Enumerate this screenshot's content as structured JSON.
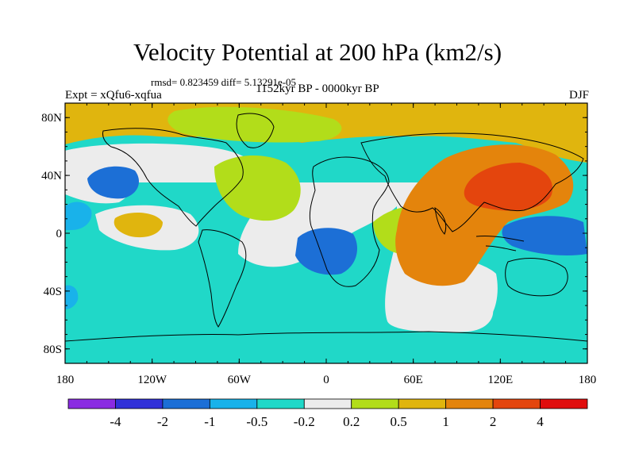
{
  "title": "Velocity Potential at 200 hPa (km2/s)",
  "stats": "rmsd= 0.823459 diff= 5.13291e-05",
  "experiment": "Expt = xQfu6-xqfua",
  "period": "1152kyr BP - 0000kyr BP",
  "season": "DJF",
  "map": {
    "lon_range": [
      -180,
      180
    ],
    "lat_range": [
      -90,
      90
    ],
    "lat_ticks": [
      {
        "value": 80,
        "label": "80N"
      },
      {
        "value": 40,
        "label": "40N"
      },
      {
        "value": 0,
        "label": "0"
      },
      {
        "value": -40,
        "label": "40S"
      },
      {
        "value": -80,
        "label": "80S"
      }
    ],
    "lon_ticks": [
      {
        "value": -180,
        "label": "180"
      },
      {
        "value": -120,
        "label": "120W"
      },
      {
        "value": -60,
        "label": "60W"
      },
      {
        "value": 0,
        "label": "0"
      },
      {
        "value": 60,
        "label": "60E"
      },
      {
        "value": 120,
        "label": "120E"
      },
      {
        "value": 180,
        "label": "180"
      }
    ]
  },
  "colorbar": {
    "colors": [
      "#8a2be2",
      "#3131d8",
      "#1c6fd6",
      "#19b2ea",
      "#20d8c8",
      "#ececec",
      "#b2dd1a",
      "#e0b50e",
      "#e4840c",
      "#e4450d",
      "#e00d0d"
    ],
    "labels": [
      "-4",
      "-2",
      "-1",
      "-0.5",
      "-0.2",
      "0.2",
      "0.5",
      "1",
      "2",
      "4"
    ]
  },
  "chart_data": {
    "type": "heatmap",
    "title": "Velocity Potential at 200 hPa (km2/s)",
    "subtitle": "1152kyr BP - 0000kyr BP",
    "season": "DJF",
    "units": "km2/s",
    "x_range": [
      -180,
      180
    ],
    "y_range": [
      -90,
      90
    ],
    "levels": [
      -4,
      -2,
      -1,
      -0.5,
      -0.2,
      0.2,
      0.5,
      1,
      2,
      4
    ],
    "background_class": "-0.5 to -0.2",
    "regions": [
      {
        "name": "north-polar band",
        "class": "0.5 to 1"
      },
      {
        "name": "asia-maximum",
        "class": "2 to 4"
      },
      {
        "name": "indian-ocean-high",
        "class": "1 to 2"
      },
      {
        "name": "north-pacific-low",
        "class": "-2 to -1"
      },
      {
        "name": "atlantic-low",
        "class": "-2 to -1"
      },
      {
        "name": "west-pacific-low",
        "class": "-2 to -1"
      },
      {
        "name": "north-atlantic-positive",
        "class": "0.2 to 0.5"
      },
      {
        "name": "southern-indian-neutral",
        "class": "-0.2 to 0.2"
      }
    ]
  }
}
